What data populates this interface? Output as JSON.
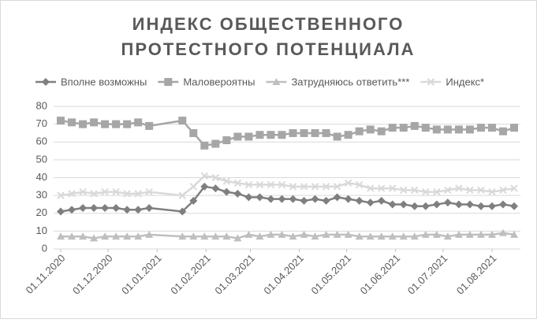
{
  "chart_data": {
    "type": "line",
    "title": "ИНДЕКС ОБЩЕСТВЕННОГО ПРОТЕСТНОГО ПОТЕНЦИАЛА",
    "x": [
      "01.11.2020",
      "08.11.2020",
      "15.11.2020",
      "22.11.2020",
      "29.11.2020",
      "06.12.2020",
      "13.12.2020",
      "20.12.2020",
      "27.12.2020",
      "17.01.2021",
      "24.01.2021",
      "31.01.2021",
      "07.02.2021",
      "14.02.2021",
      "21.02.2021",
      "28.02.2021",
      "07.03.2021",
      "14.03.2021",
      "21.03.2021",
      "28.03.2021",
      "04.04.2021",
      "11.04.2021",
      "18.04.2021",
      "25.04.2021",
      "02.05.2021",
      "09.05.2021",
      "16.05.2021",
      "23.05.2021",
      "30.05.2021",
      "06.06.2021",
      "13.06.2021",
      "20.06.2021",
      "27.06.2021",
      "04.07.2021",
      "11.07.2021",
      "18.07.2021",
      "25.07.2021",
      "01.08.2021",
      "08.08.2021",
      "15.08.2021"
    ],
    "series": [
      {
        "name": "Вполне возможны",
        "color": "#7f7f7f",
        "marker": "diamond",
        "values": [
          21,
          22,
          23,
          23,
          23,
          23,
          22,
          22,
          23,
          21,
          27,
          35,
          34,
          32,
          31,
          29,
          29,
          28,
          28,
          28,
          27,
          28,
          27,
          29,
          28,
          27,
          26,
          27,
          25,
          25,
          24,
          24,
          25,
          26,
          25,
          25,
          24,
          24,
          25,
          24
        ]
      },
      {
        "name": "Маловероятны",
        "color": "#a6a6a6",
        "marker": "square",
        "values": [
          72,
          71,
          70,
          71,
          70,
          70,
          70,
          71,
          69,
          72,
          65,
          58,
          59,
          61,
          63,
          63,
          64,
          64,
          64,
          65,
          65,
          65,
          65,
          63,
          64,
          66,
          67,
          66,
          68,
          68,
          69,
          68,
          67,
          67,
          67,
          67,
          68,
          68,
          66,
          68
        ]
      },
      {
        "name": "Затрудняюсь ответить***",
        "color": "#bfbfbf",
        "marker": "triangle",
        "values": [
          7,
          7,
          7,
          6,
          7,
          7,
          7,
          7,
          8,
          7,
          7,
          7,
          7,
          7,
          6,
          8,
          7,
          8,
          8,
          7,
          8,
          7,
          8,
          8,
          8,
          7,
          7,
          7,
          7,
          7,
          7,
          8,
          8,
          7,
          8,
          8,
          8,
          8,
          9,
          8
        ]
      },
      {
        "name": "Индекс*",
        "color": "#d9d9d9",
        "marker": "x",
        "values": [
          30,
          31,
          32,
          31,
          32,
          32,
          31,
          31,
          32,
          30,
          35,
          41,
          40,
          38,
          37,
          36,
          36,
          36,
          36,
          35,
          35,
          35,
          35,
          35,
          37,
          36,
          34,
          34,
          34,
          33,
          33,
          32,
          32,
          33,
          34,
          33,
          33,
          32,
          33,
          34
        ]
      }
    ],
    "xlim": [
      "01.11.2020",
      "15.08.2021"
    ],
    "xticks": [
      "01.11.2020",
      "01.12.2020",
      "01.01.2021",
      "01.02.2021",
      "01.03.2021",
      "01.04.2021",
      "01.05.2021",
      "01.06.2021",
      "01.07.2021",
      "01.08.2021"
    ],
    "ylim": [
      0,
      80
    ],
    "yticks": [
      0,
      10,
      20,
      30,
      40,
      50,
      60,
      70,
      80
    ],
    "grid": true,
    "legend": "top"
  }
}
